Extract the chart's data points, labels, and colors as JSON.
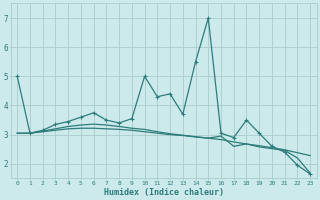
{
  "xlabel": "Humidex (Indice chaleur)",
  "bg_color": "#cce9ec",
  "grid_color": "#aacccc",
  "line_color": "#2e7d7a",
  "xlim": [
    -0.5,
    23.5
  ],
  "ylim": [
    1.5,
    7.5
  ],
  "yticks": [
    2,
    3,
    4,
    5,
    6,
    7
  ],
  "xticks": [
    0,
    1,
    2,
    3,
    4,
    5,
    6,
    7,
    8,
    9,
    10,
    11,
    12,
    13,
    14,
    15,
    16,
    17,
    18,
    19,
    20,
    21,
    22,
    23
  ],
  "series1_x": [
    0,
    1,
    2,
    3,
    4,
    5,
    6,
    7,
    8,
    9,
    10,
    11,
    12,
    13,
    14,
    15,
    16,
    17,
    18,
    19,
    20,
    21,
    22,
    23
  ],
  "series1_y": [
    5.0,
    3.05,
    3.15,
    3.35,
    3.45,
    3.6,
    3.75,
    3.5,
    3.4,
    3.55,
    5.0,
    4.3,
    4.4,
    3.7,
    5.5,
    7.0,
    3.05,
    2.9,
    3.5,
    3.05,
    2.6,
    2.4,
    1.95,
    1.65
  ],
  "series2_x": [
    0,
    1,
    2,
    3,
    4,
    5,
    6,
    7,
    8,
    9,
    10,
    11,
    12,
    13,
    14,
    15,
    16,
    17,
    18,
    19,
    20,
    21,
    22,
    23
  ],
  "series2_y": [
    3.05,
    3.05,
    3.1,
    3.15,
    3.2,
    3.22,
    3.22,
    3.2,
    3.18,
    3.15,
    3.1,
    3.05,
    3.0,
    2.97,
    2.92,
    2.88,
    2.83,
    2.75,
    2.68,
    2.62,
    2.55,
    2.48,
    2.38,
    2.28
  ],
  "series3_x": [
    0,
    1,
    2,
    3,
    4,
    5,
    6,
    7,
    8,
    9,
    10,
    11,
    12,
    13,
    14,
    15,
    16,
    17,
    18,
    19,
    20,
    21,
    22,
    23
  ],
  "series3_y": [
    3.05,
    3.05,
    3.12,
    3.2,
    3.28,
    3.33,
    3.36,
    3.33,
    3.28,
    3.22,
    3.18,
    3.1,
    3.03,
    2.98,
    2.93,
    2.88,
    2.95,
    2.6,
    2.68,
    2.58,
    2.52,
    2.46,
    2.2,
    1.68
  ]
}
